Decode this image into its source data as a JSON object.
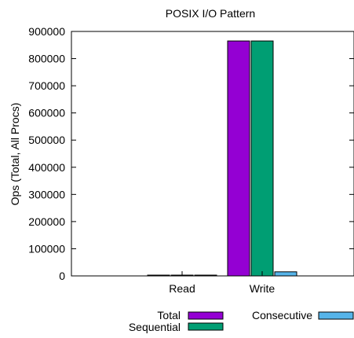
{
  "chart_data": {
    "type": "bar",
    "title": "POSIX I/O Pattern",
    "xlabel": "",
    "ylabel": "Ops (Total, All Procs)",
    "categories": [
      "Read",
      "Write"
    ],
    "series": [
      {
        "name": "Total",
        "values": [
          0,
          865000
        ],
        "color": "#9400d3"
      },
      {
        "name": "Sequential",
        "values": [
          0,
          865000
        ],
        "color": "#009e73"
      },
      {
        "name": "Consecutive",
        "values": [
          0,
          15000
        ],
        "color": "#56b4e9"
      }
    ],
    "ylim": [
      0,
      900000
    ],
    "yticks": [
      "0",
      "100000",
      "200000",
      "300000",
      "400000",
      "500000",
      "600000",
      "700000",
      "800000",
      "900000"
    ],
    "grid": false,
    "legend": "bottom"
  }
}
